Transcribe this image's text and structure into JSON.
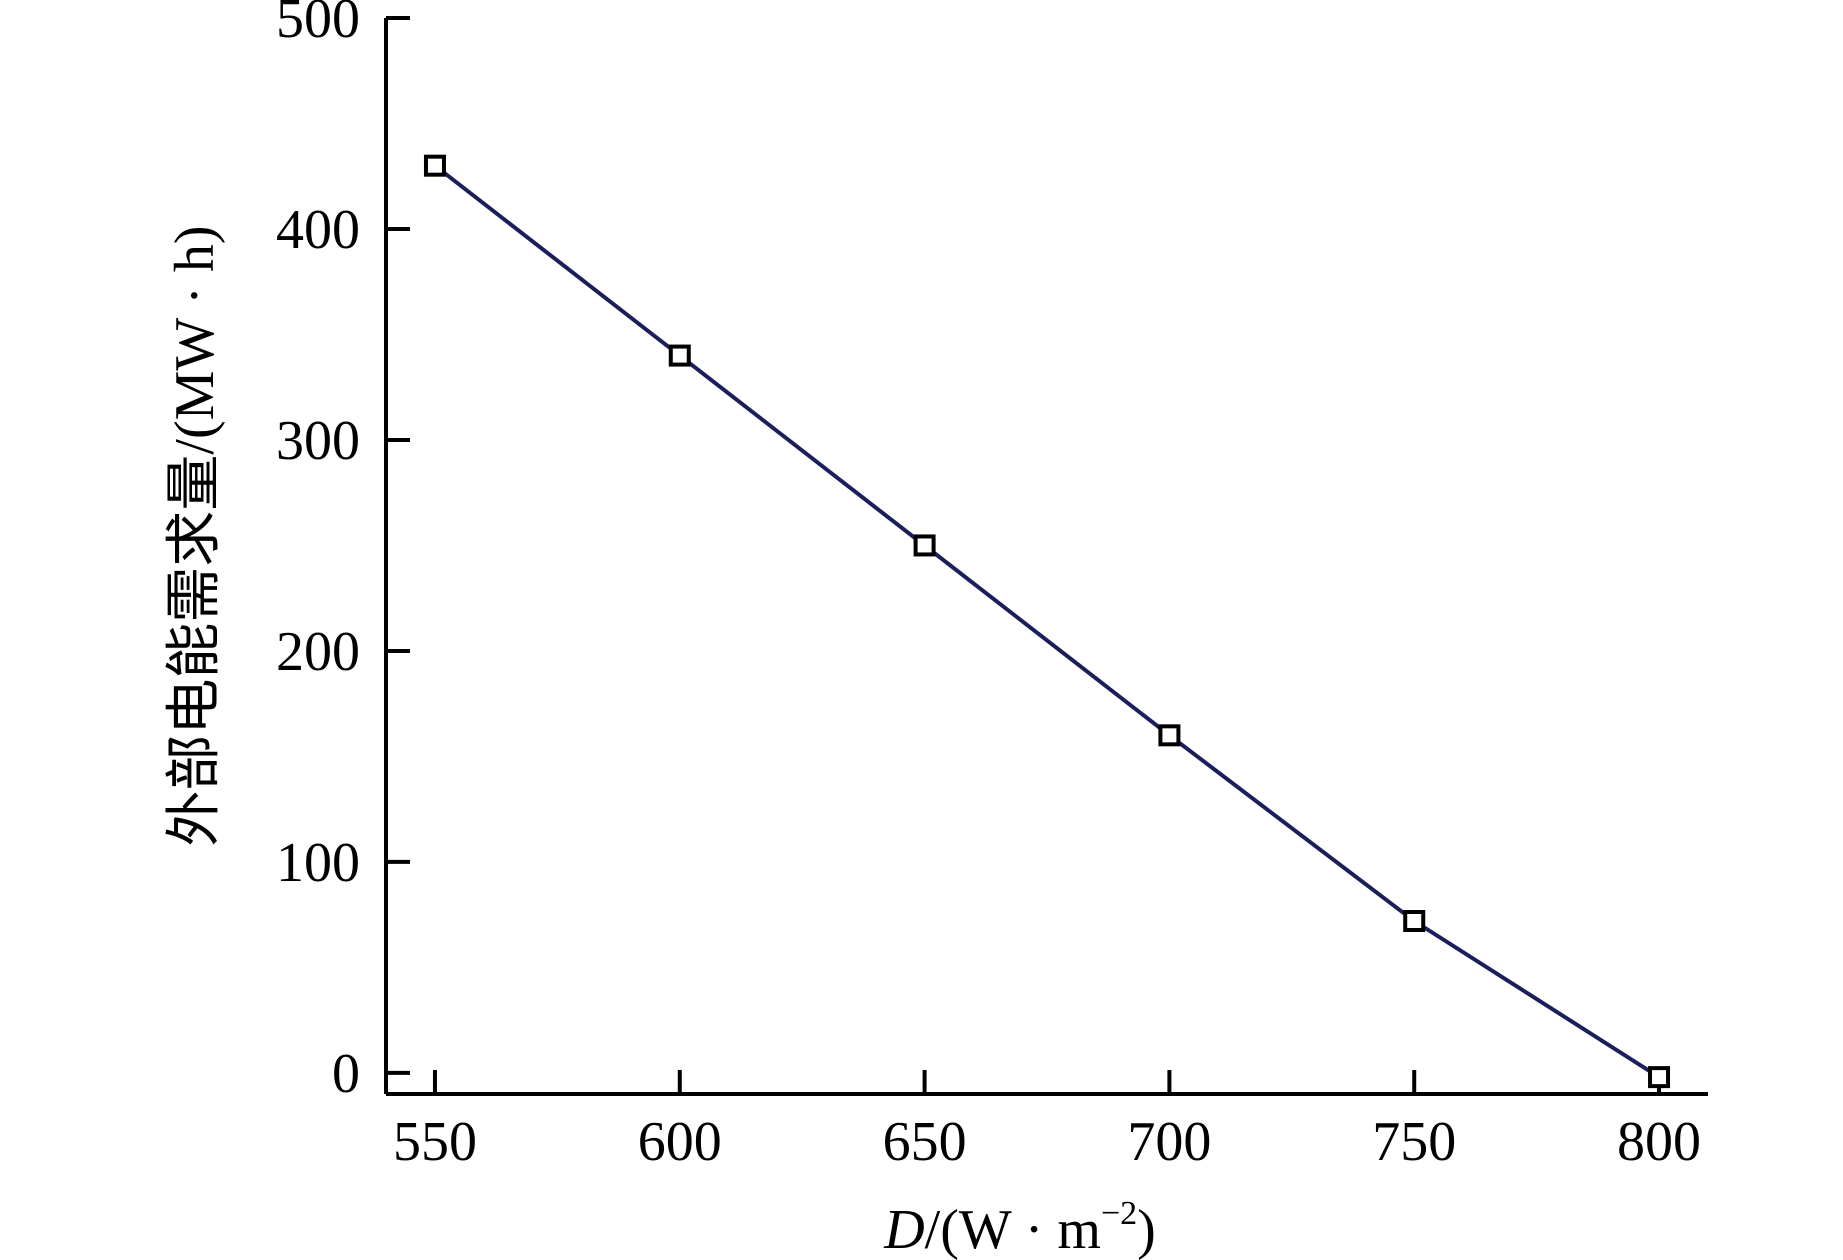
{
  "chart_data": {
    "type": "line",
    "title": "",
    "xlabel": "D/(W · m⁻²)",
    "xlabel_parts": {
      "var": "D",
      "unit_open": "/(W · m",
      "sup": "−2",
      "unit_close": ")"
    },
    "ylabel": "外部电能需求量/(MW · h)",
    "xlim": [
      540,
      810
    ],
    "ylim": [
      -10,
      500
    ],
    "xticks": [
      550,
      600,
      650,
      700,
      750,
      800
    ],
    "yticks": [
      0,
      100,
      200,
      300,
      400,
      500
    ],
    "grid": false,
    "legend": "none",
    "series": [
      {
        "x": [
          550,
          600,
          650,
          700,
          750,
          800
        ],
        "y": [
          430,
          340,
          250,
          160,
          72,
          -2
        ],
        "line_color": "#1a1f5c",
        "marker": "square-open"
      }
    ]
  }
}
